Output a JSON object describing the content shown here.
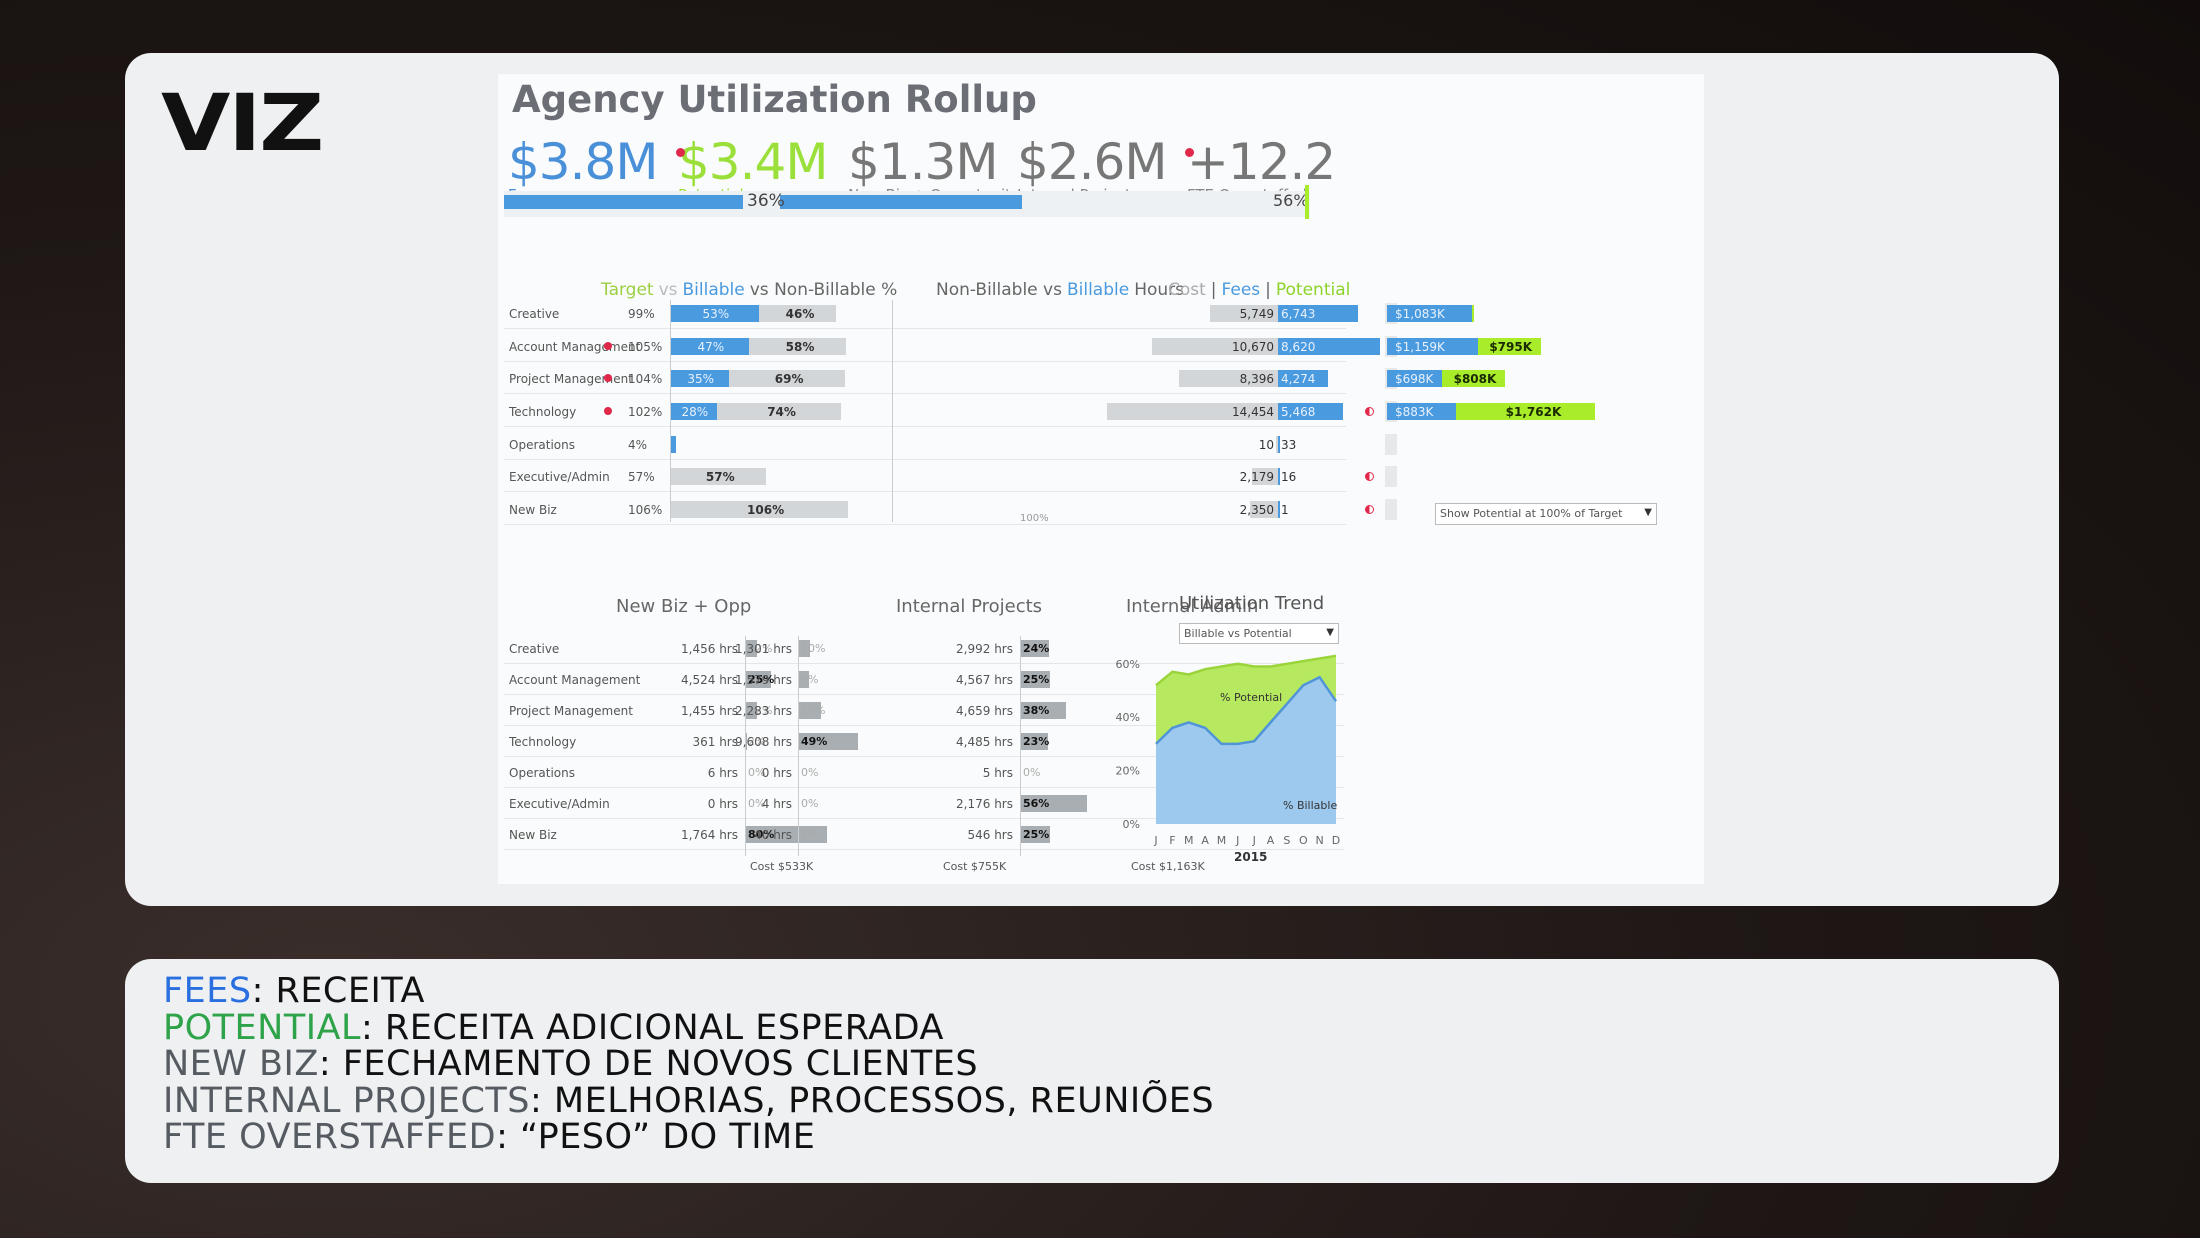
{
  "logo": "VIZ",
  "dashboard": {
    "title": "Agency Utilization Rollup",
    "kpis": [
      {
        "value": "$3.8M",
        "label": "Fees",
        "color": "#4a90d9"
      },
      {
        "value": "$3.4M",
        "label": "Potential",
        "color": "#9be03a"
      },
      {
        "value": "$1.3M",
        "label": "New Biz + Opportunity",
        "color": "#777777"
      },
      {
        "value": "$2.6M",
        "label": "Internal Projects",
        "color": "#777777"
      },
      {
        "value": "+12.2",
        "label": "FTE Overstaffed",
        "color": "#777777"
      }
    ],
    "progress": {
      "left_label": "36%",
      "right_label": "56%",
      "fill_fraction": 0.36,
      "marker_fraction": 0.56
    },
    "section1": {
      "title_parts": [
        "Target",
        "vs",
        "Billable",
        "vs Non-Billable %"
      ],
      "rows": [
        {
          "name": "Creative",
          "dot": false,
          "target": "99%",
          "billable": "53%",
          "nonbillable": "46%",
          "b": 53,
          "nb": 46
        },
        {
          "name": "Account Management",
          "dot": true,
          "target": "105%",
          "billable": "47%",
          "nonbillable": "58%",
          "b": 47,
          "nb": 58
        },
        {
          "name": "Project Management",
          "dot": true,
          "target": "104%",
          "billable": "35%",
          "nonbillable": "69%",
          "b": 35,
          "nb": 69
        },
        {
          "name": "Technology",
          "dot": true,
          "target": "102%",
          "billable": "28%",
          "nonbillable": "74%",
          "b": 28,
          "nb": 74
        },
        {
          "name": "Operations",
          "dot": false,
          "target": "4%",
          "billable": "",
          "nonbillable": "",
          "b": 3,
          "nb": 0
        },
        {
          "name": "Executive/Admin",
          "dot": false,
          "target": "57%",
          "billable": "",
          "nonbillable": "57%",
          "b": 0,
          "nb": 57
        },
        {
          "name": "New Biz",
          "dot": false,
          "target": "106%",
          "billable": "",
          "nonbillable": "106%",
          "b": 0,
          "nb": 106
        }
      ],
      "ref_label": "100%"
    },
    "section2": {
      "title_parts": [
        "Non-Billable vs",
        "Billable",
        "Hours"
      ],
      "rows": [
        {
          "nb": "5,749",
          "b": "6,743",
          "nbv": 5749,
          "bv": 6743
        },
        {
          "nb": "10,670",
          "b": "8,620",
          "nbv": 10670,
          "bv": 8620
        },
        {
          "nb": "8,396",
          "b": "4,274",
          "nbv": 8396,
          "bv": 4274
        },
        {
          "nb": "14,454",
          "b": "5,468",
          "nbv": 14454,
          "bv": 5468
        },
        {
          "nb": "10",
          "b": "33",
          "nbv": 10,
          "bv": 33
        },
        {
          "nb": "2,179",
          "b": "16",
          "nbv": 2179,
          "bv": 16
        },
        {
          "nb": "2,350",
          "b": "1",
          "nbv": 2350,
          "bv": 1
        }
      ]
    },
    "section3": {
      "title_parts": [
        "Cost",
        "|",
        "Fees",
        "|",
        "Potential"
      ],
      "rows": [
        {
          "fees": "$1,083K",
          "potential": "",
          "fv": 1083,
          "pv": 20,
          "half": false
        },
        {
          "fees": "$1,159K",
          "potential": "$795K",
          "fv": 1159,
          "pv": 795,
          "half": false
        },
        {
          "fees": "$698K",
          "potential": "$808K",
          "fv": 698,
          "pv": 808,
          "half": false
        },
        {
          "fees": "$883K",
          "potential": "$1,762K",
          "fv": 883,
          "pv": 1762,
          "half": true
        },
        {
          "fees": "",
          "potential": "",
          "fv": 0,
          "pv": 0,
          "half": false
        },
        {
          "fees": "",
          "potential": "",
          "fv": 0,
          "pv": 0,
          "half": true
        },
        {
          "fees": "",
          "potential": "",
          "fv": 0,
          "pv": 0,
          "half": true
        }
      ],
      "dropdown": "Show Potential at 100% of Target"
    },
    "lower_rows": [
      "Creative",
      "Account Management",
      "Project Management",
      "Technology",
      "Operations",
      "Executive/Admin",
      "New Biz"
    ],
    "newbiz": {
      "title": "New Biz + Opp",
      "cost": "Cost  $533K",
      "rows": [
        {
          "hrs": "1,456 hrs",
          "pct": "12%",
          "p": 12
        },
        {
          "hrs": "4,524 hrs",
          "pct": "25%",
          "p": 25
        },
        {
          "hrs": "1,455 hrs",
          "pct": "12%",
          "p": 12
        },
        {
          "hrs": "361 hrs",
          "pct": "2%",
          "p": 2
        },
        {
          "hrs": "6 hrs",
          "pct": "0%",
          "p": 0
        },
        {
          "hrs": "0 hrs",
          "pct": "0%",
          "p": 0
        },
        {
          "hrs": "1,764 hrs",
          "pct": "80%",
          "p": 80
        }
      ]
    },
    "internal": {
      "title": "Internal Projects",
      "cost": "Cost  $755K",
      "rows": [
        {
          "hrs": "1,301 hrs",
          "pct": "10%",
          "p": 10
        },
        {
          "hrs": "1,579 hrs",
          "pct": "9%",
          "p": 9
        },
        {
          "hrs": "2,283 hrs",
          "pct": "19%",
          "p": 19
        },
        {
          "hrs": "9,608 hrs",
          "pct": "49%",
          "p": 49
        },
        {
          "hrs": "0 hrs",
          "pct": "0%",
          "p": 0
        },
        {
          "hrs": "4 hrs",
          "pct": "0%",
          "p": 0
        },
        {
          "hrs": "40 hrs",
          "pct": "2%",
          "p": 2
        }
      ]
    },
    "admin": {
      "title": "Internal Admin",
      "cost": "Cost  $1,163K",
      "rows": [
        {
          "hrs": "2,992 hrs",
          "pct": "24%",
          "p": 24
        },
        {
          "hrs": "4,567 hrs",
          "pct": "25%",
          "p": 25
        },
        {
          "hrs": "4,659 hrs",
          "pct": "38%",
          "p": 38
        },
        {
          "hrs": "4,485 hrs",
          "pct": "23%",
          "p": 23
        },
        {
          "hrs": "5 hrs",
          "pct": "0%",
          "p": 0
        },
        {
          "hrs": "2,176 hrs",
          "pct": "56%",
          "p": 56
        },
        {
          "hrs": "546 hrs",
          "pct": "25%",
          "p": 25
        }
      ]
    },
    "trend": {
      "title": "Utilization Trend",
      "dropdown": "Billable vs Potential",
      "potential_label": "% Potential",
      "billable_label": "% Billable",
      "year": "2015"
    }
  },
  "chart_data": {
    "type": "area",
    "title": "Utilization Trend",
    "x": [
      "J",
      "F",
      "M",
      "A",
      "M",
      "J",
      "J",
      "A",
      "S",
      "O",
      "N",
      "D"
    ],
    "ylim": [
      0,
      60
    ],
    "yticks": [
      "60%",
      "40%",
      "20%",
      "0%"
    ],
    "xlabel": "2015",
    "series": [
      {
        "name": "% Potential",
        "values": [
          52,
          57,
          56,
          58,
          59,
          60,
          59,
          59,
          60,
          61,
          62,
          63
        ]
      },
      {
        "name": "% Billable",
        "values": [
          30,
          36,
          38,
          36,
          30,
          30,
          31,
          38,
          45,
          52,
          55,
          46
        ]
      }
    ]
  },
  "legend": [
    {
      "key": "FEES",
      "text": ": RECEITA",
      "color": "#2a6fe0"
    },
    {
      "key": "POTENTIAL",
      "text": ": RECEITA ADICIONAL ESPERADA",
      "color": "#2fa34a"
    },
    {
      "key": "NEW BIZ",
      "text": ": FECHAMENTO DE NOVOS CLIENTES",
      "color": "#555b61"
    },
    {
      "key": "INTERNAL PROJECTS",
      "text": ": MELHORIAS, PROCESSOS, REUNIÕES",
      "color": "#555b61"
    },
    {
      "key": "FTE OVERSTAFFED",
      "text": ": “PESO” DO TIME",
      "color": "#555b61"
    }
  ]
}
